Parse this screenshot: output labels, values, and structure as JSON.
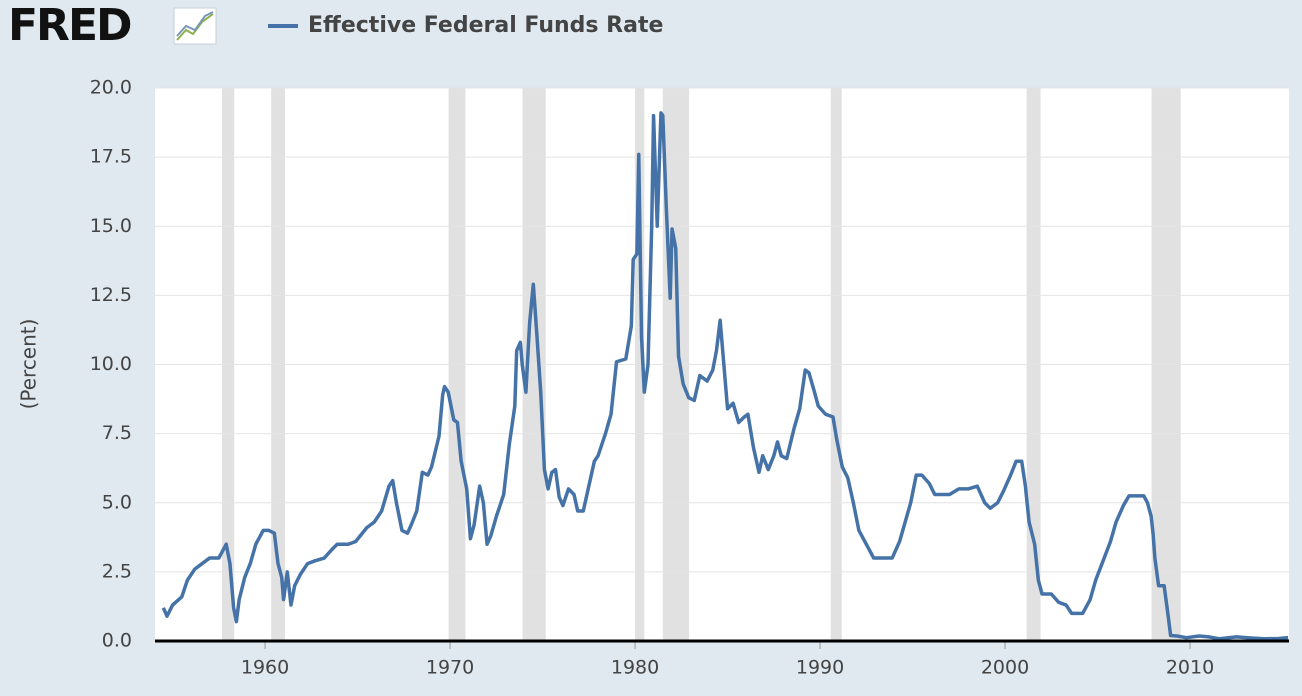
{
  "chart_data": {
    "type": "line",
    "logo": "FRED",
    "y_label": "(Percent)",
    "xlim": [
      1954.05,
      2015.35
    ],
    "ylim": [
      0,
      20
    ],
    "xticks": [
      1960,
      1970,
      1980,
      1990,
      2000,
      2010
    ],
    "yticks": [
      {
        "value": 0,
        "label": "0.0"
      },
      2.5,
      {
        "value": 5,
        "label": "5.0"
      },
      7.5,
      {
        "value": 10,
        "label": "10.0"
      },
      12.5,
      {
        "value": 15,
        "label": "15.0"
      },
      17.5,
      {
        "value": 20,
        "label": "20.0"
      }
    ],
    "grid": true,
    "recession_color": "#e1e1e1",
    "recessions": [
      [
        1957.67,
        1958.33
      ],
      [
        1960.33,
        1961.08
      ],
      [
        1969.92,
        1970.83
      ],
      [
        1973.92,
        1975.17
      ],
      [
        1980.0,
        1980.5
      ],
      [
        1981.5,
        1982.92
      ],
      [
        1990.58,
        1991.17
      ],
      [
        2001.17,
        2001.92
      ],
      [
        2007.92,
        2009.5
      ]
    ],
    "x": [
      1954.5,
      1954.7,
      1955.0,
      1955.5,
      1955.8,
      1956.2,
      1956.6,
      1957.0,
      1957.5,
      1957.9,
      1958.1,
      1958.3,
      1958.45,
      1958.6,
      1958.9,
      1959.2,
      1959.5,
      1959.9,
      1960.2,
      1960.5,
      1960.7,
      1960.9,
      1961.0,
      1961.2,
      1961.4,
      1961.6,
      1961.9,
      1962.3,
      1962.7,
      1963.2,
      1963.6,
      1963.9,
      1964.5,
      1964.9,
      1965.5,
      1965.9,
      1966.3,
      1966.7,
      1966.9,
      1967.1,
      1967.4,
      1967.7,
      1967.9,
      1968.2,
      1968.5,
      1968.8,
      1969.0,
      1969.4,
      1969.6,
      1969.7,
      1969.9,
      1970.2,
      1970.4,
      1970.6,
      1970.9,
      1971.1,
      1971.3,
      1971.6,
      1971.8,
      1972.0,
      1972.2,
      1972.5,
      1972.9,
      1973.2,
      1973.5,
      1973.6,
      1973.8,
      1973.9,
      1974.1,
      1974.3,
      1974.5,
      1974.7,
      1974.9,
      1975.1,
      1975.3,
      1975.5,
      1975.7,
      1975.9,
      1976.1,
      1976.4,
      1976.7,
      1976.9,
      1977.2,
      1977.5,
      1977.8,
      1978.0,
      1978.4,
      1978.7,
      1979.0,
      1979.5,
      1979.8,
      1979.9,
      1980.1,
      1980.2,
      1980.35,
      1980.5,
      1980.7,
      1980.9,
      1981.0,
      1981.2,
      1981.4,
      1981.5,
      1981.7,
      1981.9,
      1982.0,
      1982.2,
      1982.35,
      1982.6,
      1982.9,
      1983.2,
      1983.5,
      1983.9,
      1984.2,
      1984.4,
      1984.6,
      1984.8,
      1985.0,
      1985.3,
      1985.6,
      1985.9,
      1986.1,
      1986.4,
      1986.7,
      1986.9,
      1987.2,
      1987.5,
      1987.7,
      1987.9,
      1988.2,
      1988.6,
      1988.9,
      1989.2,
      1989.4,
      1989.7,
      1989.9,
      1990.3,
      1990.7,
      1990.9,
      1991.2,
      1991.5,
      1991.8,
      1992.1,
      1992.5,
      1992.9,
      1993.5,
      1993.9,
      1994.3,
      1994.6,
      1994.9,
      1995.2,
      1995.5,
      1995.9,
      1996.2,
      1996.7,
      1997.0,
      1997.5,
      1998.0,
      1998.5,
      1998.9,
      1999.2,
      1999.6,
      1999.9,
      2000.3,
      2000.6,
      2000.9,
      2001.1,
      2001.3,
      2001.6,
      2001.8,
      2002.0,
      2002.5,
      2002.9,
      2003.3,
      2003.6,
      2004.2,
      2004.6,
      2004.9,
      2005.3,
      2005.7,
      2006.0,
      2006.4,
      2006.7,
      2007.0,
      2007.5,
      2007.7,
      2007.9,
      2008.0,
      2008.1,
      2008.3,
      2008.6,
      2008.8,
      2008.95,
      2009.3,
      2009.8,
      2010.5,
      2011.0,
      2011.6,
      2012.5,
      2013.3,
      2014.0,
      2014.8,
      2015.3
    ],
    "series": [
      {
        "name": "Effective Federal Funds Rate",
        "color": "#4572a7",
        "values": [
          1.2,
          0.9,
          1.3,
          1.6,
          2.2,
          2.6,
          2.8,
          3.0,
          3.0,
          3.5,
          2.8,
          1.2,
          0.7,
          1.5,
          2.3,
          2.8,
          3.5,
          4.0,
          4.0,
          3.9,
          2.8,
          2.3,
          1.5,
          2.5,
          1.3,
          2.0,
          2.4,
          2.8,
          2.9,
          3.0,
          3.3,
          3.5,
          3.5,
          3.6,
          4.1,
          4.3,
          4.7,
          5.6,
          5.8,
          5.0,
          4.0,
          3.9,
          4.2,
          4.7,
          6.1,
          6.0,
          6.3,
          7.4,
          8.9,
          9.2,
          9.0,
          8.0,
          7.9,
          6.5,
          5.5,
          3.7,
          4.2,
          5.6,
          5.0,
          3.5,
          3.8,
          4.5,
          5.3,
          7.1,
          8.5,
          10.5,
          10.8,
          10.0,
          9.0,
          11.5,
          12.9,
          11.0,
          9.0,
          6.2,
          5.5,
          6.1,
          6.2,
          5.2,
          4.9,
          5.5,
          5.3,
          4.7,
          4.7,
          5.6,
          6.5,
          6.7,
          7.5,
          8.2,
          10.1,
          10.2,
          11.4,
          13.8,
          14.0,
          17.6,
          11.0,
          9.0,
          10.0,
          15.0,
          19.0,
          15.0,
          19.1,
          19.0,
          15.5,
          12.4,
          14.9,
          14.2,
          10.3,
          9.3,
          8.8,
          8.7,
          9.6,
          9.4,
          9.8,
          10.5,
          11.6,
          10.0,
          8.4,
          8.6,
          7.9,
          8.1,
          8.2,
          7.0,
          6.1,
          6.7,
          6.2,
          6.7,
          7.2,
          6.7,
          6.6,
          7.7,
          8.4,
          9.8,
          9.7,
          9.0,
          8.5,
          8.2,
          8.1,
          7.3,
          6.3,
          5.9,
          5.0,
          4.0,
          3.5,
          3.0,
          3.0,
          3.0,
          3.6,
          4.3,
          5.0,
          6.0,
          6.0,
          5.7,
          5.3,
          5.3,
          5.3,
          5.5,
          5.5,
          5.6,
          5.0,
          4.8,
          5.0,
          5.4,
          6.0,
          6.5,
          6.5,
          5.6,
          4.3,
          3.5,
          2.2,
          1.7,
          1.7,
          1.4,
          1.3,
          1.0,
          1.0,
          1.5,
          2.2,
          2.9,
          3.6,
          4.3,
          4.9,
          5.25,
          5.25,
          5.25,
          5.0,
          4.5,
          3.9,
          3.0,
          2.0,
          2.0,
          1.0,
          0.2,
          0.18,
          0.12,
          0.18,
          0.15,
          0.08,
          0.15,
          0.11,
          0.08,
          0.09,
          0.12
        ]
      }
    ]
  }
}
